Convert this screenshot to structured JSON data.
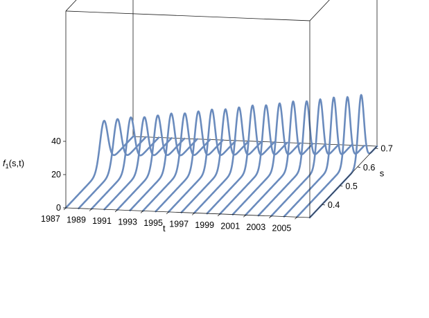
{
  "chart_data": {
    "type": "line3d",
    "xlabel": "t",
    "ylabel": "s",
    "zlabel_main": "f",
    "zlabel_sub": "1",
    "zlabel_args": "(s,t)",
    "t_ticks": [
      "1987",
      "1989",
      "1991",
      "1993",
      "1995",
      "1997",
      "1999",
      "2001",
      "2003",
      "2005"
    ],
    "s_ticks": [
      "0.4",
      "0.5",
      "0.6",
      "0.7"
    ],
    "z_ticks": [
      "0",
      "20",
      "40"
    ],
    "t_range": [
      1987,
      2006
    ],
    "s_range": [
      0.33,
      0.71
    ],
    "z_range": [
      0,
      45
    ],
    "curve_color": "#6a8bbd",
    "grid": false,
    "series_t": [
      1987,
      1988,
      1989,
      1990,
      1991,
      1992,
      1993,
      1994,
      1995,
      1996,
      1997,
      1998,
      1999,
      2000,
      2001,
      2002,
      2003,
      2004,
      2005,
      2006
    ],
    "peak_s": [
      0.545,
      0.548,
      0.551,
      0.555,
      0.558,
      0.562,
      0.566,
      0.57,
      0.574,
      0.578,
      0.582,
      0.586,
      0.59,
      0.594,
      0.598,
      0.602,
      0.606,
      0.61,
      0.615,
      0.62
    ],
    "peak_value": [
      28,
      29,
      30,
      30,
      31,
      32,
      32,
      33,
      34,
      34,
      35,
      36,
      36,
      37,
      38,
      38,
      39,
      40,
      40,
      41
    ],
    "peak_width_s": [
      0.022,
      0.022,
      0.021,
      0.021,
      0.021,
      0.02,
      0.02,
      0.02,
      0.019,
      0.019,
      0.019,
      0.018,
      0.018,
      0.018,
      0.017,
      0.017,
      0.017,
      0.016,
      0.016,
      0.016
    ]
  }
}
